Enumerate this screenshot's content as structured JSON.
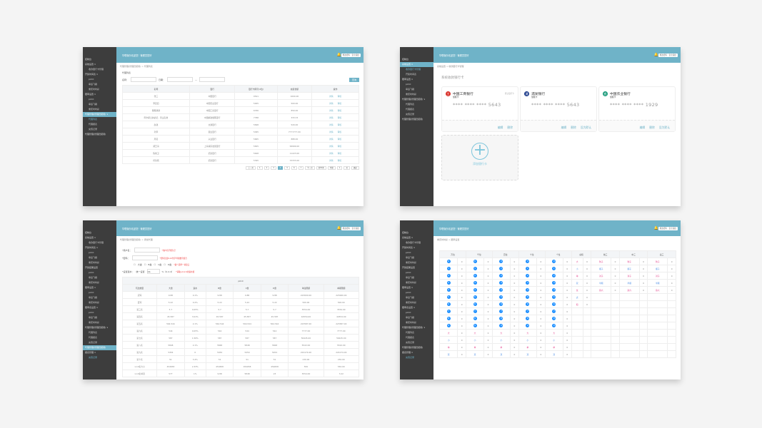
{
  "header": {
    "title": "华联娱乐欢迎您！管理员您好",
    "btn1": "修改密码",
    "btn2": "安全退出"
  },
  "sidebars": {
    "p1": [
      [
        "控制台",
        0
      ],
      [
        "系统设置 ∨",
        0
      ],
      [
        "收款银行卡管理",
        1
      ],
      [
        "开奖时间表 ∨",
        0
      ],
      [
        "pk10",
        1
      ],
      [
        "幸运飞艇",
        1
      ],
      [
        "重庆时时彩",
        1
      ],
      [
        "赔率设置 ∨",
        0
      ],
      [
        "pk10",
        1
      ],
      [
        "幸运飞艇",
        1
      ],
      [
        "重庆时时彩",
        1
      ],
      [
        "代理管理(管理员使用) ∨",
        2
      ],
      [
        "代理列表",
        3
      ],
      [
        "代理报表",
        1
      ],
      [
        "充值记录",
        1
      ],
      [
        "代理管理(管理员使用)",
        0
      ]
    ],
    "p2": [
      [
        "控制台",
        0
      ],
      [
        "系统设置 ∨",
        2
      ],
      [
        "收款银行卡管理",
        3
      ],
      [
        "开奖时间表",
        1
      ],
      [
        "赔率设置 ∨",
        0
      ],
      [
        "pk10",
        1
      ],
      [
        "幸运飞艇",
        1
      ],
      [
        "重庆时时彩",
        1
      ],
      [
        "代理管理(管理员使用) ∨",
        0
      ],
      [
        "代理列表",
        1
      ],
      [
        "代理报表",
        1
      ],
      [
        "充值记录",
        1
      ],
      [
        "代理管理(管理员使用)",
        0
      ]
    ],
    "p3": [
      [
        "控制台",
        0
      ],
      [
        "系统设置 ∨",
        0
      ],
      [
        "收款银行卡管理",
        1
      ],
      [
        "开奖时间表 ∨",
        0
      ],
      [
        "pk10",
        1
      ],
      [
        "幸运飞艇",
        1
      ],
      [
        "重庆时时彩",
        1
      ],
      [
        "开奖结果设置",
        0
      ],
      [
        "pk10",
        1
      ],
      [
        "幸运飞艇",
        1
      ],
      [
        "重庆时时彩",
        1
      ],
      [
        "赔率设置 ∨",
        0
      ],
      [
        "pk10",
        1
      ],
      [
        "幸运飞艇",
        1
      ],
      [
        "重庆时时彩",
        1
      ],
      [
        "赔率表设置 ∨",
        0
      ],
      [
        "pk10",
        1
      ],
      [
        "幸运飞艇",
        1
      ],
      [
        "重庆时时彩",
        1
      ],
      [
        "代理管理(管理员使用) ∨",
        0
      ],
      [
        "代理列表",
        1
      ],
      [
        "代理报表",
        1
      ],
      [
        "充值记录",
        1
      ],
      [
        "代理管理(管理员使用)",
        2
      ],
      [
        "报表管理 ∨",
        0
      ],
      [
        "充值记录",
        3
      ]
    ],
    "p4": [
      [
        "控制台",
        0
      ],
      [
        "系统设置 ∨",
        0
      ],
      [
        "收款银行卡管理",
        1
      ],
      [
        "开奖时间表 ∨",
        0
      ],
      [
        "pk10",
        1
      ],
      [
        "幸运飞艇",
        1
      ],
      [
        "重庆时时彩",
        1
      ],
      [
        "开奖结果设置",
        0
      ],
      [
        "pk10",
        1
      ],
      [
        "幸运飞艇",
        1
      ],
      [
        "重庆时时彩",
        1
      ],
      [
        "赔率设置 ∨",
        0
      ],
      [
        "pk10",
        1
      ],
      [
        "幸运飞艇",
        1
      ],
      [
        "重庆时时彩",
        1
      ],
      [
        "赔率表设置 ∨",
        0
      ],
      [
        "pk10",
        1
      ],
      [
        "幸运飞艇",
        1
      ],
      [
        "重庆时时彩",
        1
      ],
      [
        "代理管理(管理员使用) ∨",
        0
      ],
      [
        "代理列表",
        1
      ],
      [
        "代理报表",
        1
      ],
      [
        "充值记录",
        1
      ],
      [
        "代理管理(管理员使用)",
        0
      ],
      [
        "报表管理 ∨",
        0
      ],
      [
        "充值记录",
        3
      ]
    ]
  },
  "p1": {
    "crumb": "代理管理(管理员使用) > 代理列表",
    "section": "代理列表",
    "name_label": "名称：",
    "date_label": "日期：",
    "search": "查询",
    "cols": [
      "名称",
      "银行",
      "银行卡尾号(4位)",
      "充值金额",
      "操作"
    ],
    "rows": [
      [
        "张三",
        "中国银行",
        "0521",
        "1000.00"
      ],
      [
        "李四四",
        "中国农业银行",
        "5005",
        "500.00"
      ],
      [
        "程程通通",
        "中国工商银行",
        "6336",
        "850.00"
      ],
      [
        "阿尔斯兰的战记：风尘乱舞",
        "中国邮政储蓄银行",
        "7788",
        "333.33"
      ],
      [
        "赵钱",
        "交通银行",
        "5698",
        "520.00"
      ],
      [
        "孙李",
        "民生银行",
        "5095",
        "7777777.00"
      ],
      [
        "周吴",
        "兴业银行",
        "5665",
        "888.00"
      ],
      [
        "郑王冯",
        "上海浦东发展银行",
        "5825",
        "99999.00"
      ],
      [
        "陈褚卫",
        "招商银行",
        "5648",
        "11223.00"
      ],
      [
        "蒋沈韩",
        "招商银行",
        "5395",
        "33333.00"
      ]
    ],
    "act1": "详情",
    "act2": "审核",
    "pages": [
      "上一页",
      "1",
      "2",
      "3",
      "4",
      "5",
      "6",
      "7",
      "下一页",
      "共80条",
      "到第",
      "1",
      "页",
      "确定"
    ],
    "active_page": "4"
  },
  "p2": {
    "crumb": "系统设置 > 收款银行卡管理",
    "title": "系统收款银行卡",
    "cards": [
      {
        "bank": "中国工商银行",
        "type": "储蓄卡",
        "default": "默认银行卡",
        "num": "****  ****  ****  5643",
        "color": "#d9322b",
        "glyph": "工",
        "actions": [
          "编辑",
          "删除"
        ]
      },
      {
        "bank": "浦发银行",
        "type": "储蓄卡",
        "default": "",
        "num": "****  ****  ****  5643",
        "color": "#1b3a8a",
        "glyph": "浦",
        "actions": [
          "编辑",
          "删除",
          "设为默认"
        ]
      },
      {
        "bank": "中国农业银行",
        "type": "储蓄卡",
        "default": "",
        "num": "****  ****  ****  1929",
        "color": "#1a9a7a",
        "glyph": "农",
        "actions": [
          "编辑",
          "删除",
          "设为默认"
        ]
      }
    ],
    "add": "添加银行卡"
  },
  "p3": {
    "crumb": "代理管理(管理员使用) > 添加代理",
    "f1": "*用户名：",
    "f1hint": "*用户名不能为空",
    "f2": "*密码：",
    "f2hint": "*密码长度6-12位字母和数字组合",
    "opts": [
      "大盘",
      "B盘",
      "C盘",
      "D盘"
    ],
    "opthint": "*最少选择一项盘口",
    "f3": "*设置退水：",
    "f3a": "统一设置",
    "f3v": "0.1",
    "f3b": "%（0-2.4）",
    "f3hint": "*请输入0-2.4的退水值",
    "group": "pk10",
    "cols": [
      "玩法类型",
      "大盘",
      "退水",
      "B盘",
      "C盘",
      "D盘",
      "单注限额",
      "单期限额"
    ],
    "rows": [
      [
        "冠军",
        "9.88",
        "0.1%",
        "9.88",
        "9.88",
        "9.88",
        "223000.00",
        "223000.00"
      ],
      [
        "亚军",
        "5.22",
        "0.2%",
        "5.22",
        "5.22",
        "5.22",
        "500.00",
        "500.00"
      ],
      [
        "第三名",
        "5.7",
        "0.05%",
        "5.7",
        "5.7",
        "5.7",
        "3554.00",
        "3554.00"
      ],
      [
        "第四名",
        "45.587",
        "3.01%",
        "45.587",
        "45.587",
        "45.587",
        "44554.00",
        "44554.00"
      ],
      [
        "第五名",
        "564.544",
        "2.1%",
        "564.544",
        "564.544",
        "564.544",
        "223587.00",
        "223587.00"
      ],
      [
        "第六名",
        "544",
        "0.05%",
        "544",
        "544",
        "544",
        "7777.00",
        "7777.00"
      ],
      [
        "第七名",
        "587",
        "1.56%",
        "587",
        "587",
        "587",
        "56445.00",
        "56445.00"
      ],
      [
        "第八名",
        "5848",
        "2.1%",
        "5848",
        "5848",
        "5848",
        "5522.00",
        "5522.00"
      ],
      [
        "第九名",
        "5454",
        "0",
        "5454",
        "5454",
        "5454",
        "224174.00",
        "224174.00"
      ],
      [
        "第十名",
        "51",
        "3.4%",
        "51",
        "51",
        "51",
        "230.00",
        "230.00"
      ],
      [
        "1-10名大小",
        "454658",
        "2.33%",
        "454658",
        "454658",
        "454658",
        "550",
        "550.00"
      ],
      [
        "1-10名单双",
        "577",
        "1%",
        "9.88",
        "5848",
        "23",
        "3554.00",
        "3.22"
      ]
    ]
  },
  "p4": {
    "crumb": "重庆时时彩 > 赔率设置",
    "heads": [
      "万位",
      "千位",
      "百位",
      "十位",
      "个位",
      "总和",
      "前三",
      "中三",
      "后三"
    ],
    "ballcol": [
      "0",
      "1",
      "2",
      "3",
      "4",
      "5",
      "6",
      "7",
      "8",
      "9",
      "大",
      "小",
      "单",
      "双"
    ],
    "sumcol": [
      "大",
      "小",
      "单",
      "双",
      "龙",
      "虎",
      "和"
    ],
    "threecol": [
      "豹子",
      "顺子",
      "对子",
      "半顺",
      "杂六"
    ],
    "odds": "0"
  }
}
